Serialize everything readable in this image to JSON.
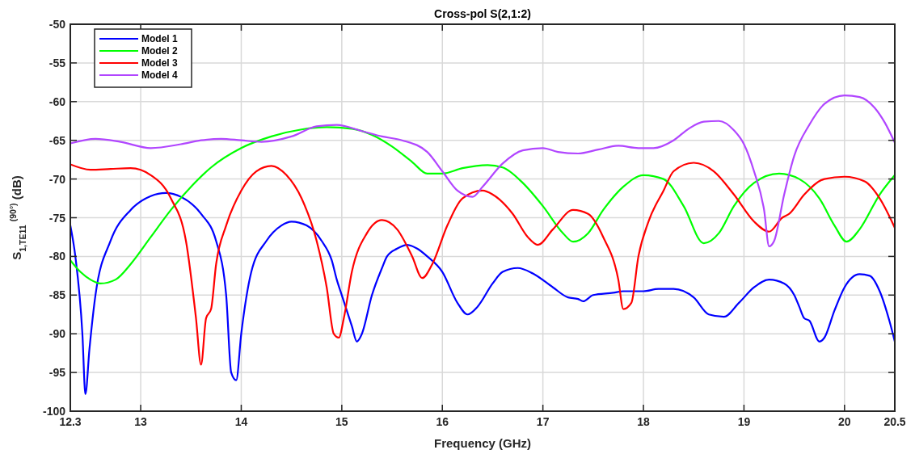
{
  "chart_data": {
    "type": "line",
    "title": "Cross-pol S(2,1:2)",
    "xlabel": "Frequency (GHz)",
    "ylabel": "S$_{1,TE}$$_{11}$ $^{(90°)}$ (dB)",
    "xlim": [
      12.3,
      20.5
    ],
    "xticks": [
      12.3,
      13,
      14,
      15,
      16,
      17,
      18,
      19,
      20,
      20.5
    ],
    "ylim": [
      -100,
      -50
    ],
    "yticks": [
      -100,
      -95,
      -90,
      -85,
      -80,
      -75,
      -70,
      -65,
      -60,
      -55,
      -50
    ],
    "grid": true,
    "legend": "top left",
    "line_style": "solid",
    "marker": "none",
    "series": [
      {
        "name": "Model 1",
        "color": "#0000ff",
        "x": [
          12.3,
          12.35,
          12.42,
          12.45,
          12.49,
          12.55,
          12.7,
          12.9,
          13.1,
          13.25,
          13.4,
          13.6,
          13.75,
          13.85,
          13.9,
          13.95,
          14.0,
          14.1,
          14.25,
          14.4,
          14.5,
          14.65,
          14.8,
          14.9,
          14.95,
          15.0,
          15.1,
          15.15,
          15.2,
          15.3,
          15.4,
          15.45,
          15.55,
          15.65,
          15.75,
          15.85,
          16.0,
          16.15,
          16.25,
          16.35,
          16.5,
          16.6,
          16.75,
          16.9,
          17.1,
          17.25,
          17.35,
          17.4,
          17.5,
          17.7,
          17.8,
          18.0,
          18.15,
          18.3,
          18.5,
          18.65,
          18.8,
          18.95,
          19.1,
          19.25,
          19.4,
          19.5,
          19.55,
          19.6,
          19.65,
          19.75,
          19.8,
          19.9,
          20.0,
          20.15,
          20.25,
          20.35,
          20.45,
          20.5
        ],
        "values": [
          -76,
          -80,
          -90,
          -97.8,
          -92,
          -85,
          -78,
          -74,
          -72.2,
          -71.8,
          -72.3,
          -74.5,
          -78,
          -85,
          -95,
          -96,
          -90,
          -82,
          -78,
          -76,
          -75.5,
          -76,
          -78,
          -80.5,
          -83,
          -85,
          -89,
          -91,
          -90,
          -85,
          -81.5,
          -80,
          -79,
          -78.5,
          -79,
          -80,
          -82,
          -86,
          -87.5,
          -86.5,
          -83.5,
          -82,
          -81.5,
          -82.2,
          -84,
          -85.3,
          -85.5,
          -85.8,
          -85,
          -84.7,
          -84.5,
          -84.5,
          -84.2,
          -84.2,
          -85.3,
          -87.5,
          -87.8,
          -86,
          -84,
          -83,
          -83.5,
          -85,
          -86.5,
          -88,
          -88.3,
          -91,
          -90.5,
          -87,
          -84,
          -82.3,
          -82.5,
          -84.5,
          -88.5,
          -91
        ]
      },
      {
        "name": "Model 2",
        "color": "#00ff00",
        "x": [
          12.3,
          12.4,
          12.5,
          12.6,
          12.75,
          12.9,
          13.1,
          13.3,
          13.5,
          13.7,
          14.0,
          14.3,
          14.6,
          14.85,
          15.1,
          15.3,
          15.5,
          15.7,
          15.85,
          16.0,
          16.2,
          16.45,
          16.6,
          16.8,
          17.0,
          17.2,
          17.3,
          17.45,
          17.6,
          17.8,
          18.0,
          18.2,
          18.4,
          18.6,
          18.75,
          18.9,
          19.1,
          19.35,
          19.55,
          19.75,
          19.9,
          20.02,
          20.15,
          20.35,
          20.5
        ],
        "values": [
          -80.5,
          -82,
          -83,
          -83.5,
          -83,
          -81,
          -77.5,
          -74,
          -71,
          -68.5,
          -66,
          -64.5,
          -63.6,
          -63.3,
          -63.5,
          -64.3,
          -65.8,
          -67.8,
          -69.3,
          -69.3,
          -68.6,
          -68.2,
          -68.5,
          -70.5,
          -73.5,
          -77,
          -78.1,
          -77,
          -74,
          -71,
          -69.5,
          -70,
          -73.5,
          -78.3,
          -77,
          -73.5,
          -70.5,
          -69.3,
          -70,
          -72.5,
          -76,
          -78.1,
          -76.5,
          -72,
          -69.5
        ]
      },
      {
        "name": "Model 3",
        "color": "#ff0000",
        "x": [
          12.3,
          12.5,
          12.7,
          12.9,
          13.1,
          13.3,
          13.45,
          13.55,
          13.6,
          13.65,
          13.7,
          13.75,
          13.85,
          14.0,
          14.15,
          14.3,
          14.45,
          14.6,
          14.75,
          14.85,
          14.92,
          14.97,
          15.02,
          15.1,
          15.25,
          15.4,
          15.55,
          15.7,
          15.8,
          15.9,
          16.05,
          16.2,
          16.4,
          16.5,
          16.7,
          16.85,
          16.95,
          17.1,
          17.3,
          17.45,
          17.6,
          17.75,
          17.8,
          17.88,
          17.95,
          18.05,
          18.2,
          18.3,
          18.5,
          18.7,
          18.9,
          19.1,
          19.25,
          19.38,
          19.45,
          19.6,
          19.8,
          20.0,
          20.2,
          20.35,
          20.5
        ],
        "values": [
          -68.1,
          -68.8,
          -68.7,
          -68.6,
          -69.5,
          -72.5,
          -78,
          -88,
          -94,
          -88,
          -86.8,
          -81,
          -76,
          -71.5,
          -69,
          -68.3,
          -69.5,
          -72.5,
          -78,
          -84,
          -90,
          -90.5,
          -88,
          -82,
          -77,
          -75.3,
          -76.5,
          -80,
          -82.8,
          -81,
          -76,
          -72.5,
          -71.5,
          -72,
          -74.5,
          -77.5,
          -78.5,
          -76.5,
          -74,
          -74.5,
          -77.5,
          -83,
          -86.8,
          -86,
          -80,
          -75.5,
          -71.5,
          -69,
          -67.9,
          -69,
          -72,
          -75.5,
          -76.8,
          -75,
          -74.5,
          -72,
          -70,
          -69.7,
          -70.3,
          -72.5,
          -76.3
        ]
      },
      {
        "name": "Model 4",
        "color": "#b146ff",
        "x": [
          12.3,
          12.55,
          12.8,
          13.1,
          13.4,
          13.6,
          13.8,
          14.0,
          14.2,
          14.5,
          14.75,
          14.95,
          15.2,
          15.4,
          15.6,
          15.85,
          16.0,
          16.15,
          16.3,
          16.4,
          16.6,
          16.8,
          17.0,
          17.15,
          17.35,
          17.55,
          17.75,
          17.95,
          18.1,
          18.3,
          18.45,
          18.6,
          18.75,
          18.9,
          19.0,
          19.1,
          19.2,
          19.25,
          19.3,
          19.4,
          19.5,
          19.65,
          19.8,
          20.0,
          20.15,
          20.3,
          20.4,
          20.5
        ],
        "values": [
          -65.4,
          -64.8,
          -65.2,
          -66,
          -65.5,
          -65,
          -64.8,
          -65,
          -65.2,
          -64.5,
          -63.2,
          -63,
          -63.8,
          -64.5,
          -65,
          -66.5,
          -69,
          -71.5,
          -72.3,
          -71,
          -68,
          -66.3,
          -66,
          -66.5,
          -66.7,
          -66.2,
          -65.7,
          -66,
          -66,
          -65,
          -63.5,
          -62.6,
          -62.5,
          -63.7,
          -65.5,
          -69,
          -74,
          -78.7,
          -78,
          -72,
          -67,
          -63,
          -60.3,
          -59.2,
          -59.4,
          -60.8,
          -62.7,
          -65.3
        ]
      }
    ]
  }
}
